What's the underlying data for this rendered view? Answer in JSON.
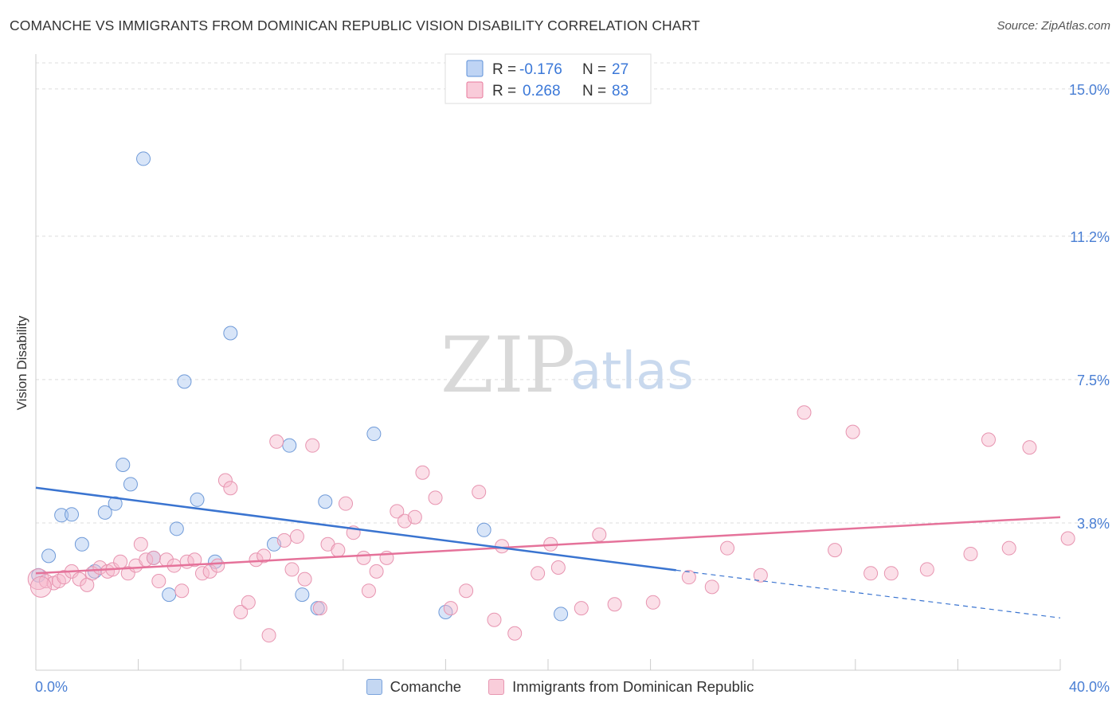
{
  "title": "COMANCHE VS IMMIGRANTS FROM DOMINICAN REPUBLIC VISION DISABILITY CORRELATION CHART",
  "source": "Source: ZipAtlas.com",
  "watermark": {
    "zip": "ZIP",
    "atlas": "atlas"
  },
  "legend": {
    "rows": [
      {
        "r_label": "R =",
        "r_value": "-0.176",
        "n_label": "N =",
        "n_value": "27",
        "color": "#a9c6f0",
        "stroke": "#5b8fd8"
      },
      {
        "r_label": "R =",
        "r_value": "0.268",
        "n_label": "N =",
        "n_value": "83",
        "color": "#f7b9cc",
        "stroke": "#e8799c"
      }
    ]
  },
  "bottom_legend": [
    {
      "label": "Comanche",
      "color": "#c4d7f2",
      "stroke": "#7aa3dc"
    },
    {
      "label": "Immigrants from Dominican Republic",
      "color": "#f9cdda",
      "stroke": "#e796b1"
    }
  ],
  "chart_data": {
    "type": "scatter",
    "title": "COMANCHE VS IMMIGRANTS FROM DOMINICAN REPUBLIC VISION DISABILITY CORRELATION CHART",
    "xlabel": "",
    "ylabel": "Vision Disability",
    "xlim": [
      0,
      40
    ],
    "ylim": [
      0,
      15.9
    ],
    "x_tick_labels": [
      "0.0%",
      "40.0%"
    ],
    "y_ticks": [
      3.8,
      7.5,
      11.2,
      15.0
    ],
    "y_tick_labels": [
      "3.8%",
      "7.5%",
      "11.2%",
      "15.0%"
    ],
    "grid": true,
    "legend_position": "top-center",
    "series": [
      {
        "name": "Comanche",
        "color": "#a9c6f0",
        "stroke": "#6f9ad8",
        "line_color": "#3a74d0",
        "trend": {
          "x": [
            0,
            25
          ],
          "y": [
            4.71,
            2.58
          ],
          "dashed_to_x": 40,
          "dashed_to_y": 1.35
        },
        "points": [
          [
            0.1,
            2.45
          ],
          [
            0.5,
            2.95
          ],
          [
            1.0,
            4.0
          ],
          [
            1.4,
            4.02
          ],
          [
            1.8,
            3.25
          ],
          [
            2.3,
            2.55
          ],
          [
            2.7,
            4.07
          ],
          [
            3.1,
            4.3
          ],
          [
            3.4,
            5.3
          ],
          [
            3.7,
            4.8
          ],
          [
            4.2,
            13.2
          ],
          [
            4.6,
            2.9
          ],
          [
            5.2,
            1.95
          ],
          [
            5.5,
            3.65
          ],
          [
            5.8,
            7.45
          ],
          [
            6.3,
            4.4
          ],
          [
            7.0,
            2.8
          ],
          [
            7.6,
            8.7
          ],
          [
            9.3,
            3.25
          ],
          [
            9.9,
            5.8
          ],
          [
            10.4,
            1.95
          ],
          [
            11.0,
            1.6
          ],
          [
            11.3,
            4.35
          ],
          [
            13.2,
            6.1
          ],
          [
            16.0,
            1.5
          ],
          [
            17.5,
            3.62
          ],
          [
            20.5,
            1.45
          ]
        ]
      },
      {
        "name": "Immigrants from Dominican Republic",
        "color": "#f7b9cc",
        "stroke": "#e794b0",
        "line_color": "#e5729a",
        "trend": {
          "x": [
            0,
            40
          ],
          "y": [
            2.5,
            3.95
          ]
        },
        "points": [
          [
            0.1,
            2.35
          ],
          [
            0.4,
            2.3
          ],
          [
            0.7,
            2.25
          ],
          [
            0.9,
            2.3
          ],
          [
            1.1,
            2.4
          ],
          [
            1.4,
            2.55
          ],
          [
            1.7,
            2.35
          ],
          [
            2.0,
            2.2
          ],
          [
            2.2,
            2.5
          ],
          [
            2.5,
            2.65
          ],
          [
            2.8,
            2.55
          ],
          [
            3.0,
            2.6
          ],
          [
            3.3,
            2.8
          ],
          [
            3.6,
            2.5
          ],
          [
            3.9,
            2.7
          ],
          [
            4.1,
            3.25
          ],
          [
            4.3,
            2.85
          ],
          [
            4.6,
            2.9
          ],
          [
            4.8,
            2.3
          ],
          [
            5.1,
            2.85
          ],
          [
            5.4,
            2.7
          ],
          [
            5.7,
            2.05
          ],
          [
            5.9,
            2.8
          ],
          [
            6.2,
            2.85
          ],
          [
            6.5,
            2.5
          ],
          [
            6.8,
            2.55
          ],
          [
            7.1,
            2.7
          ],
          [
            7.4,
            4.9
          ],
          [
            7.6,
            4.7
          ],
          [
            8.0,
            1.5
          ],
          [
            8.3,
            1.75
          ],
          [
            8.6,
            2.85
          ],
          [
            8.9,
            2.95
          ],
          [
            9.1,
            0.9
          ],
          [
            9.4,
            5.9
          ],
          [
            9.7,
            3.35
          ],
          [
            10.0,
            2.6
          ],
          [
            10.2,
            3.45
          ],
          [
            10.5,
            2.35
          ],
          [
            10.8,
            5.8
          ],
          [
            11.1,
            1.6
          ],
          [
            11.4,
            3.25
          ],
          [
            11.8,
            3.1
          ],
          [
            12.1,
            4.3
          ],
          [
            12.4,
            3.55
          ],
          [
            12.8,
            2.9
          ],
          [
            13.0,
            2.05
          ],
          [
            13.3,
            2.55
          ],
          [
            13.7,
            2.9
          ],
          [
            14.1,
            4.1
          ],
          [
            14.4,
            3.85
          ],
          [
            14.8,
            3.95
          ],
          [
            15.1,
            5.1
          ],
          [
            15.6,
            4.45
          ],
          [
            16.2,
            1.6
          ],
          [
            16.8,
            2.05
          ],
          [
            17.3,
            4.6
          ],
          [
            17.9,
            1.3
          ],
          [
            18.2,
            3.2
          ],
          [
            18.7,
            0.95
          ],
          [
            19.6,
            2.5
          ],
          [
            20.1,
            3.25
          ],
          [
            20.4,
            2.65
          ],
          [
            21.3,
            1.6
          ],
          [
            22.0,
            3.5
          ],
          [
            22.6,
            1.7
          ],
          [
            24.1,
            1.75
          ],
          [
            25.5,
            2.4
          ],
          [
            26.4,
            2.15
          ],
          [
            27.0,
            3.15
          ],
          [
            28.3,
            2.45
          ],
          [
            30.0,
            6.65
          ],
          [
            31.2,
            3.1
          ],
          [
            31.9,
            6.15
          ],
          [
            32.6,
            2.5
          ],
          [
            33.4,
            2.5
          ],
          [
            34.8,
            2.6
          ],
          [
            36.5,
            3.0
          ],
          [
            37.2,
            5.95
          ],
          [
            38.0,
            3.15
          ],
          [
            38.8,
            5.75
          ],
          [
            40.3,
            3.4
          ],
          [
            0.2,
            2.15
          ]
        ]
      }
    ]
  }
}
